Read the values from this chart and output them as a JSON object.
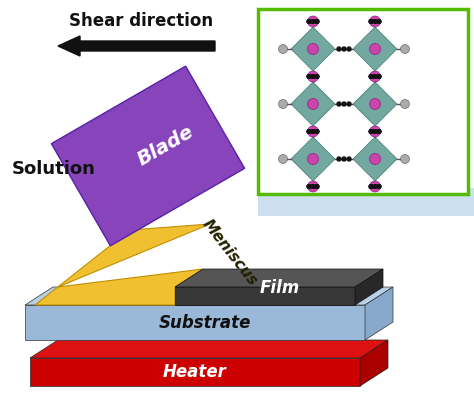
{
  "bg_color": "#ffffff",
  "shear_text": "Shear direction",
  "blade_text": "Blade",
  "solution_text": "Solution",
  "meniscus_text": "Meniscus",
  "film_text": "Film",
  "substrate_text": "Substrate",
  "heater_text": "Heater",
  "blade_color": "#8844bb",
  "blade_edge": "#5522aa",
  "meniscus_color": "#f0c030",
  "meniscus_edge": "#c09000",
  "film_color_top": "#555555",
  "film_color_front": "#383838",
  "film_color_side": "#282828",
  "substrate_color_top": "#b8d0e8",
  "substrate_color_front": "#9ab8d8",
  "substrate_color_side": "#88a8cc",
  "heater_color_top": "#dd1111",
  "heater_color_front": "#cc0000",
  "heater_color_side": "#aa0000",
  "inset_border_color": "#55bb00",
  "inset_bg_color": "#cce0f0",
  "arrow_color": "#111111",
  "text_color_dark": "#111111",
  "text_color_white": "#ffffff",
  "teal_color": "#5a9990",
  "pink_color": "#cc44aa",
  "gray_atom": "#aaaaaa"
}
